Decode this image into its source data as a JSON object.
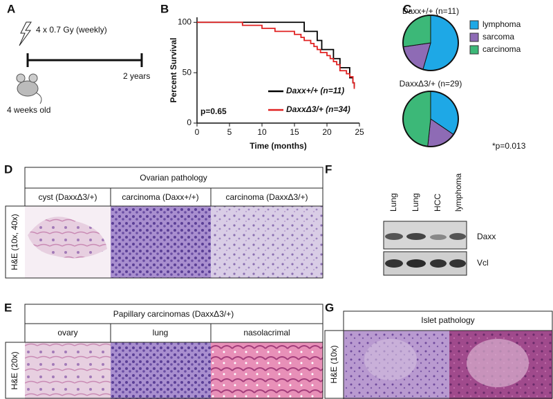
{
  "panel_labels": [
    "A",
    "B",
    "C",
    "D",
    "E",
    "F",
    "G"
  ],
  "panel_a": {
    "dose": "4 x 0.7 Gy (weekly)",
    "end": "2 years",
    "start": "4 weeks old"
  },
  "chart_data": [
    {
      "type": "line",
      "ylabel": "Percent Survival",
      "xlabel": "Time (months)",
      "xlim": [
        0,
        25
      ],
      "ylim": [
        0,
        105
      ],
      "xticks": [
        0,
        5,
        10,
        15,
        20,
        25
      ],
      "yticks": [
        0,
        50,
        100
      ],
      "annotation": "p=0.65",
      "series": [
        {
          "name": "Daxx+/+ (n=11)",
          "color": "#000000",
          "x": [
            0,
            16.5,
            18.5,
            19.2,
            21,
            22,
            23.5,
            24,
            24.2
          ],
          "values": [
            100,
            91,
            82,
            73,
            64,
            55,
            45,
            40,
            36
          ]
        },
        {
          "name": "DaxxΔ3/+ (n=34)",
          "color": "#e02020",
          "x": [
            0,
            7,
            10,
            12,
            15,
            16,
            16.5,
            17.5,
            18,
            18.5,
            19,
            20,
            20.5,
            21,
            21.5,
            22,
            23,
            23.5,
            24,
            24.2
          ],
          "values": [
            100,
            97,
            94,
            91,
            88,
            85,
            82,
            79,
            76,
            73,
            70,
            67,
            64,
            61,
            58,
            52,
            49,
            46,
            40,
            34
          ]
        }
      ]
    },
    {
      "type": "pie",
      "title": "Daxx+/+ (n=11)",
      "categories": [
        "lymphoma",
        "sarcoma",
        "carcinoma"
      ],
      "values": [
        54.5,
        18.2,
        27.3
      ],
      "colors": [
        "#1ea8e6",
        "#8e6bb5",
        "#3cb878"
      ]
    },
    {
      "type": "pie",
      "title": "DaxxΔ3/+ (n=29)",
      "values": [
        34.5,
        17.2,
        48.3
      ],
      "colors": [
        "#1ea8e6",
        "#8e6bb5",
        "#3cb878"
      ],
      "annotation": "*p=0.013"
    }
  ],
  "panel_d": {
    "title": "Ovarian pathology",
    "row_label": "H&E (10x, 40x)",
    "columns": [
      "cyst (DaxxΔ3/+)",
      "carcinoma (Daxx+/+)",
      "carcinoma (DaxxΔ3/+)"
    ]
  },
  "panel_e": {
    "title": "Papillary carcinomas (DaxxΔ3/+)",
    "row_label": "H&E (20x)",
    "columns": [
      "ovary",
      "lung",
      "nasolacrimal"
    ]
  },
  "panel_f": {
    "lanes": [
      "Lung",
      "Lung",
      "HCC",
      "lymphoma"
    ],
    "blots": [
      "Daxx",
      "Vcl"
    ]
  },
  "panel_g": {
    "title": "Islet pathology",
    "row_label": "H&E (10x)"
  }
}
